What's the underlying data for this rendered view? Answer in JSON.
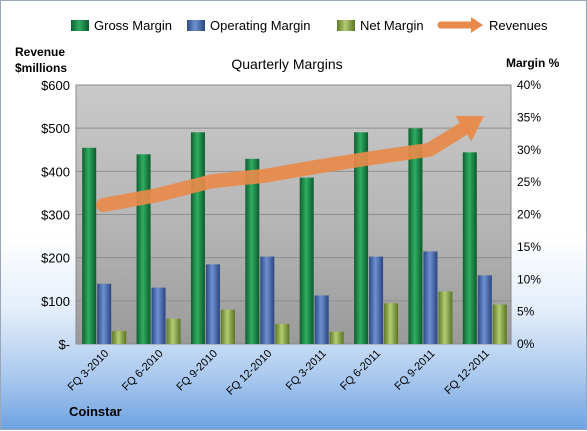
{
  "chart_data": {
    "type": "bar",
    "title": "Quarterly Margins",
    "left_axis_label_line1": "Revenue",
    "left_axis_label_line2": "$millions",
    "right_axis_label": "Margin %",
    "source_label": "Coinstar",
    "categories": [
      "FQ 3-2010",
      "FQ 6-2010",
      "FQ 9-2010",
      "FQ 12-2010",
      "FQ 3-2011",
      "FQ 6-2011",
      "FQ 9-2011",
      "FQ 12-2011"
    ],
    "left_ylim": [
      0,
      600
    ],
    "left_ticks": [
      0,
      100,
      200,
      300,
      400,
      500,
      600
    ],
    "left_tick_labels": [
      "$-",
      "$100",
      "$200",
      "$300",
      "$400",
      "$500",
      "$600"
    ],
    "right_ylim": [
      0,
      40
    ],
    "right_ticks": [
      0,
      5,
      10,
      15,
      20,
      25,
      30,
      35,
      40
    ],
    "right_tick_labels": [
      "0%",
      "5%",
      "10%",
      "15%",
      "20%",
      "25%",
      "30%",
      "35%",
      "40%"
    ],
    "series": [
      {
        "name": "Gross Margin",
        "axis": "right",
        "color": "#1e8a4a",
        "values": [
          30.3,
          29.3,
          32.7,
          28.6,
          25.7,
          32.7,
          33.3,
          29.6
        ]
      },
      {
        "name": "Operating Margin",
        "axis": "right",
        "color": "#4a6cb0",
        "values": [
          9.3,
          8.7,
          12.3,
          13.5,
          7.5,
          13.5,
          14.3,
          10.6
        ]
      },
      {
        "name": "Net Margin",
        "axis": "right",
        "color": "#8da84a",
        "values": [
          2.0,
          3.9,
          5.3,
          3.1,
          1.9,
          6.3,
          8.1,
          6.1
        ]
      },
      {
        "name": "Revenues",
        "axis": "left",
        "color": "#e88a4a",
        "type": "line",
        "values": [
          322,
          345,
          377,
          390,
          412,
          432,
          450,
          528
        ]
      }
    ],
    "grid": true,
    "legend_position": "top"
  }
}
